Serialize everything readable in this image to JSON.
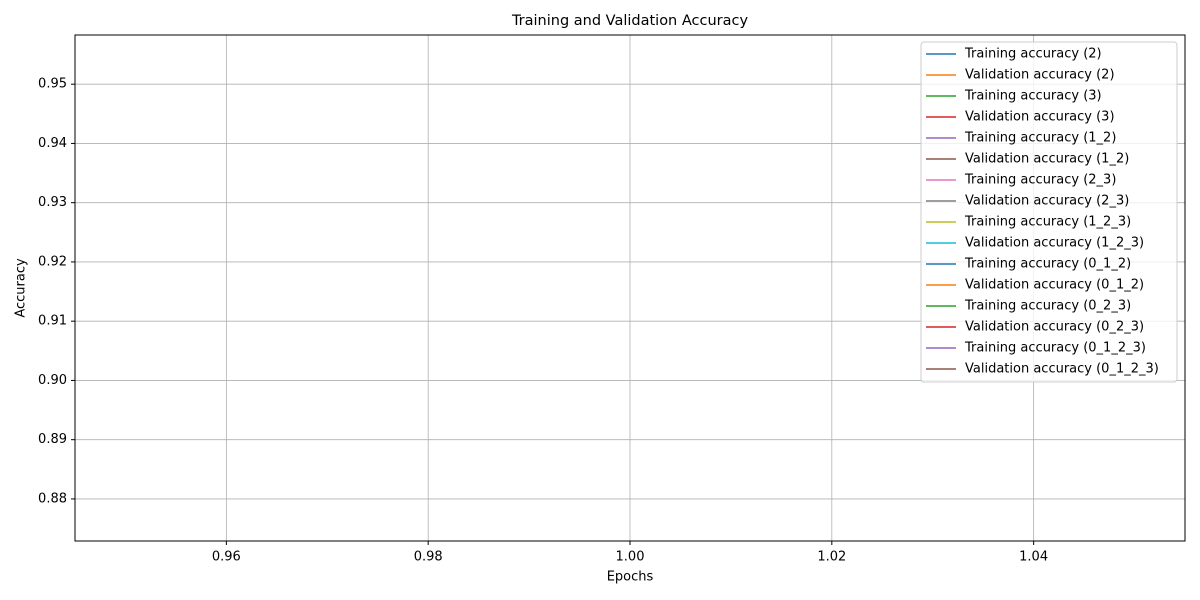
{
  "chart_data": {
    "type": "line",
    "title": "Training and Validation Accuracy",
    "x_label": "Epochs",
    "y_label": "Accuracy",
    "x": [
      1
    ],
    "series": [
      {
        "name": "Training accuracy (2)",
        "color": "#1f77b4",
        "values": [
          null
        ]
      },
      {
        "name": "Validation accuracy (2)",
        "color": "#ff7f0e",
        "values": [
          null
        ]
      },
      {
        "name": "Training accuracy (3)",
        "color": "#2ca02c",
        "values": [
          null
        ]
      },
      {
        "name": "Validation accuracy (3)",
        "color": "#d62728",
        "values": [
          null
        ]
      },
      {
        "name": "Training accuracy (1_2)",
        "color": "#9467bd",
        "values": [
          null
        ]
      },
      {
        "name": "Validation accuracy (1_2)",
        "color": "#8c564b",
        "values": [
          null
        ]
      },
      {
        "name": "Training accuracy (2_3)",
        "color": "#e377c2",
        "values": [
          null
        ]
      },
      {
        "name": "Validation accuracy (2_3)",
        "color": "#7f7f7f",
        "values": [
          null
        ]
      },
      {
        "name": "Training accuracy (1_2_3)",
        "color": "#bcbd22",
        "values": [
          null
        ]
      },
      {
        "name": "Validation accuracy (1_2_3)",
        "color": "#17becf",
        "values": [
          null
        ]
      },
      {
        "name": "Training accuracy (0_1_2)",
        "color": "#1f77b4",
        "values": [
          null
        ]
      },
      {
        "name": "Validation accuracy (0_1_2)",
        "color": "#ff7f0e",
        "values": [
          null
        ]
      },
      {
        "name": "Training accuracy (0_2_3)",
        "color": "#2ca02c",
        "values": [
          null
        ]
      },
      {
        "name": "Validation accuracy (0_2_3)",
        "color": "#d62728",
        "values": [
          null
        ]
      },
      {
        "name": "Training accuracy (0_1_2_3)",
        "color": "#9467bd",
        "values": [
          null
        ]
      },
      {
        "name": "Validation accuracy (0_1_2_3)",
        "color": "#8c564b",
        "values": [
          null
        ]
      }
    ],
    "xlim": [
      0.945,
      1.055
    ],
    "xticks": [
      0.96,
      0.98,
      {
        "value": 1.0,
        "label": "1.00"
      },
      1.02,
      1.04
    ],
    "ylim": [
      0.8729,
      0.9583
    ],
    "yticks": [
      0.88,
      0.89,
      {
        "value": 0.9,
        "label": "0.90"
      },
      0.91,
      0.92,
      0.93,
      0.94,
      0.95
    ],
    "grid": true,
    "legend": "upper right"
  }
}
